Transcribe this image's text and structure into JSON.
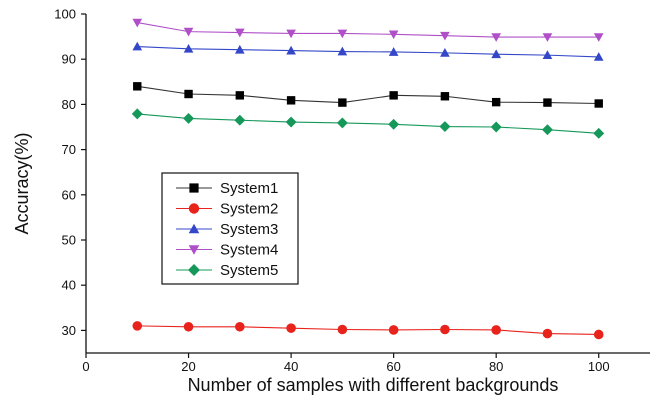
{
  "chart_data": {
    "type": "line",
    "title": "",
    "xlabel": "Number of samples with different backgrounds",
    "ylabel": "Accuracy(%)",
    "xlim": [
      0,
      110
    ],
    "ylim": [
      25,
      100
    ],
    "xticks": [
      0,
      20,
      40,
      60,
      80,
      100
    ],
    "yticks": [
      30,
      40,
      50,
      60,
      70,
      80,
      90,
      100
    ],
    "grid": false,
    "legend": {
      "position": "left-middle",
      "frame": true
    },
    "x": [
      10,
      20,
      30,
      40,
      50,
      60,
      70,
      80,
      90,
      100
    ],
    "series": [
      {
        "name": "System1",
        "marker": "square",
        "color": "#000000",
        "line_color": "#333333",
        "values": [
          84.0,
          82.3,
          82.0,
          80.9,
          80.4,
          82.0,
          81.8,
          80.5,
          80.4,
          80.2
        ]
      },
      {
        "name": "System2",
        "marker": "circle",
        "color": "#e8231c",
        "line_color": "#e8231c",
        "values": [
          31.0,
          30.8,
          30.8,
          30.5,
          30.2,
          30.1,
          30.2,
          30.1,
          29.3,
          29.1
        ]
      },
      {
        "name": "System3",
        "marker": "triangle-up",
        "color": "#3447c8",
        "line_color": "#3447c8",
        "values": [
          92.8,
          92.3,
          92.1,
          91.9,
          91.7,
          91.6,
          91.4,
          91.1,
          90.9,
          90.5
        ]
      },
      {
        "name": "System4",
        "marker": "triangle-down",
        "color": "#b050c8",
        "line_color": "#b050c8",
        "values": [
          98.1,
          96.1,
          95.9,
          95.7,
          95.7,
          95.5,
          95.2,
          94.9,
          94.9,
          94.9
        ]
      },
      {
        "name": "System5",
        "marker": "diamond",
        "color": "#16985a",
        "line_color": "#16985a",
        "values": [
          77.9,
          76.9,
          76.5,
          76.1,
          75.9,
          75.6,
          75.1,
          75.0,
          74.4,
          73.6
        ]
      }
    ]
  }
}
